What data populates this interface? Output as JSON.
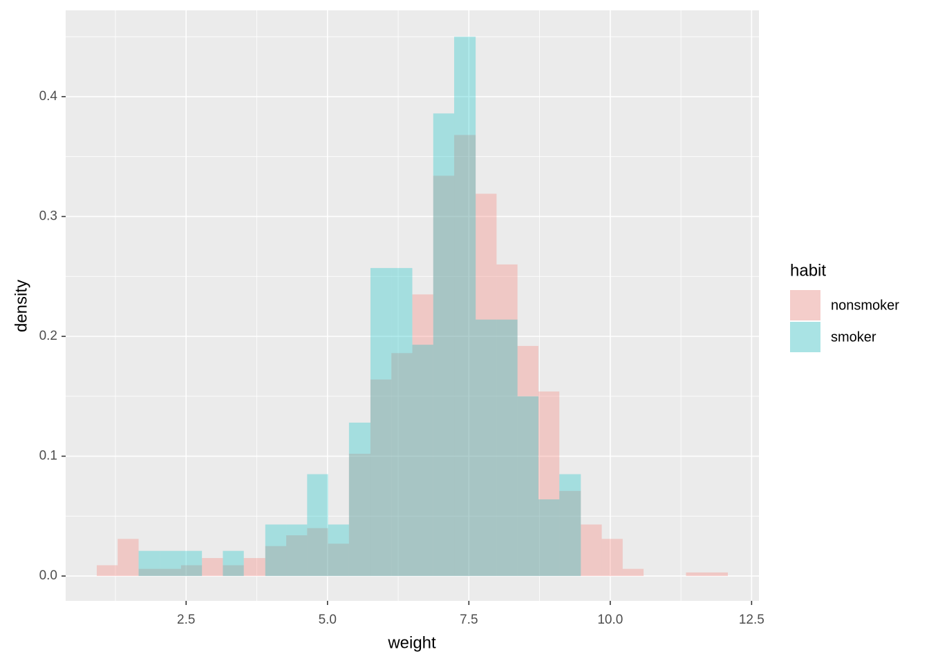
{
  "chart_data": {
    "type": "histogram",
    "x_label": "weight",
    "y_label": "density",
    "legend_title": "habit",
    "legend_position": "right",
    "bins": [
      0.92,
      1.29,
      1.66,
      2.04,
      2.41,
      2.78,
      3.15,
      3.52,
      3.9,
      4.27,
      4.64,
      5.01,
      5.38,
      5.76,
      6.13,
      6.5,
      6.87,
      7.24,
      7.62,
      7.99,
      8.36,
      8.73,
      9.1,
      9.48,
      9.85,
      10.22,
      10.59,
      10.96,
      11.34,
      11.71,
      12.08
    ],
    "series": [
      {
        "name": "nonsmoker",
        "color": "#F8766D",
        "opacity": 0.3,
        "values": [
          0.009,
          0.031,
          0.006,
          0.006,
          0.009,
          0.015,
          0.009,
          0.015,
          0.025,
          0.034,
          0.04,
          0.027,
          0.102,
          0.164,
          0.186,
          0.235,
          0.334,
          0.368,
          0.319,
          0.26,
          0.192,
          0.154,
          0.071,
          0.043,
          0.031,
          0.006,
          0,
          0,
          0.003,
          0.003
        ]
      },
      {
        "name": "smoker",
        "color": "#00BFC4",
        "opacity": 0.3,
        "values": [
          0,
          0,
          0.021,
          0.021,
          0.021,
          0,
          0.021,
          0,
          0.043,
          0.043,
          0.085,
          0.043,
          0.128,
          0.257,
          0.257,
          0.193,
          0.386,
          0.45,
          0.214,
          0.214,
          0.15,
          0.064,
          0.085,
          0,
          0,
          0,
          0,
          0,
          0,
          0
        ]
      }
    ],
    "xlim": [
      0.37,
      12.63
    ],
    "ylim": [
      -0.0207,
      0.472
    ],
    "xticks": [
      2.5,
      {
        "value": 5,
        "label": "5.0"
      },
      7.5,
      {
        "value": 10,
        "label": "10.0"
      },
      12.5
    ],
    "yticks": [
      {
        "value": 0,
        "label": "0.0"
      },
      0.1,
      0.2,
      0.3,
      0.4
    ],
    "grid": true
  }
}
